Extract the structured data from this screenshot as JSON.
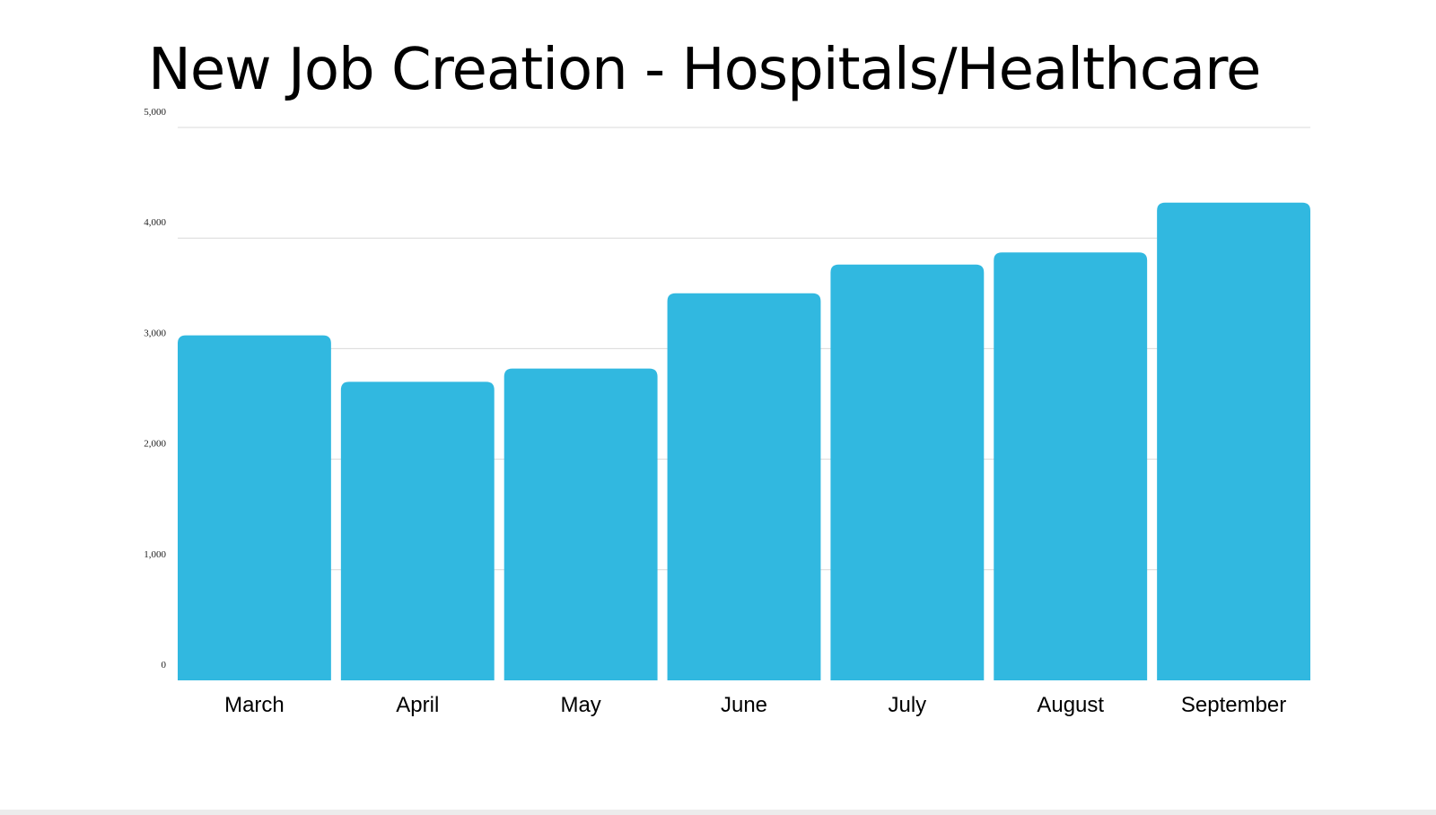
{
  "colors": {
    "bar": "#31B8E0",
    "gridline": "#d9d9d9",
    "background": "#ffffff"
  },
  "chart_data": {
    "type": "bar",
    "title": "New Job Creation - Hospitals/Healthcare",
    "xlabel": "",
    "ylabel": "",
    "categories": [
      "March",
      "April",
      "May",
      "June",
      "July",
      "August",
      "September"
    ],
    "values": [
      3120,
      2700,
      2820,
      3500,
      3760,
      3870,
      4320
    ],
    "ylim": [
      0,
      5000
    ],
    "yticks": [
      0,
      1000,
      2000,
      3000,
      4000,
      5000
    ],
    "ytick_labels": [
      "0",
      "1,000",
      "2,000",
      "3,000",
      "4,000",
      "5,000"
    ],
    "grid": true,
    "legend": "none"
  }
}
